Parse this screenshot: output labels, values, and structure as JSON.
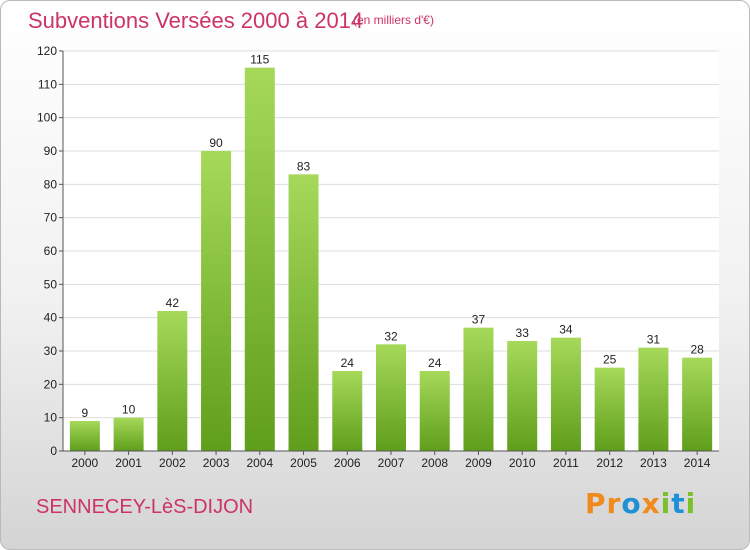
{
  "header": {
    "title": "Subventions Versées 2000 à 2014",
    "unit_note": "(en milliers d'€)"
  },
  "footer": {
    "commune": "SENNECEY-LèS-DIJON",
    "logo_text": "Proxiti",
    "logo_colors": [
      "#f08a1c",
      "#f08a1c",
      "#1e90d6",
      "#f08a1c",
      "#7bbf2a",
      "#1e90d6",
      "#7bbf2a"
    ]
  },
  "colors": {
    "title": "#cc3366",
    "bar_top": "#a6d95a",
    "bar_bottom": "#5f9e1b",
    "grid": "#dddddd",
    "axis": "#555555",
    "label": "#222222"
  },
  "chart_data": {
    "type": "bar",
    "title": "Subventions Versées 2000 à 2014",
    "categories": [
      "2000",
      "2001",
      "2002",
      "2003",
      "2004",
      "2005",
      "2006",
      "2007",
      "2008",
      "2009",
      "2010",
      "2011",
      "2012",
      "2013",
      "2014"
    ],
    "values": [
      9,
      10,
      42,
      90,
      115,
      83,
      24,
      32,
      24,
      37,
      33,
      34,
      25,
      31,
      28
    ],
    "ylim": [
      0,
      120
    ],
    "yticks": [
      0,
      10,
      20,
      30,
      40,
      50,
      60,
      70,
      80,
      90,
      100,
      110,
      120
    ],
    "grid": true,
    "data_labels": true
  }
}
